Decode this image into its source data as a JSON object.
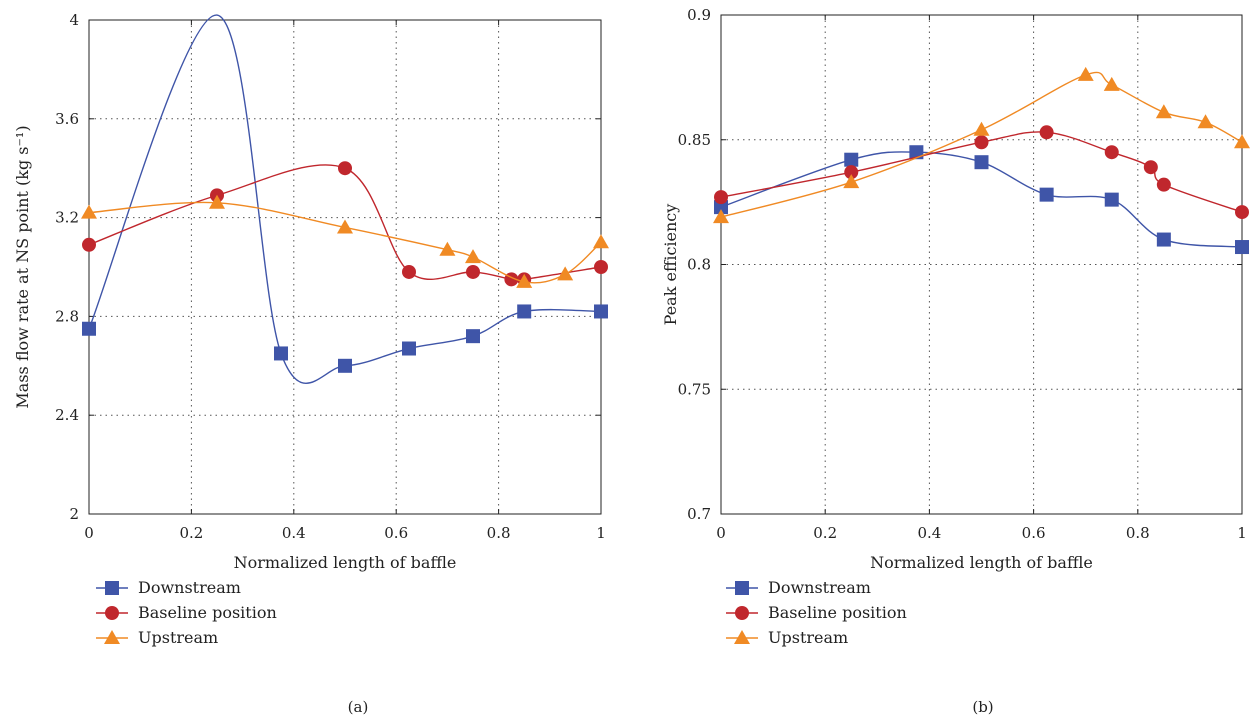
{
  "colors": {
    "downstream": "#3f55a8",
    "baseline": "#c0272d",
    "upstream": "#f08a24"
  },
  "chart_data": [
    {
      "type": "line",
      "caption": "(a)",
      "xlabel": "Normalized length of baffle",
      "ylabel": "Mass flow rate at NS point (kg s⁻¹)",
      "xlim": [
        0,
        1
      ],
      "ylim": [
        2,
        4
      ],
      "xticks": [
        "0",
        "0.2",
        "0.4",
        "0.6",
        "0.8",
        "1"
      ],
      "yticks": [
        "2",
        "2.4",
        "2.8",
        "3.2",
        "3.6",
        "4"
      ],
      "grid": true,
      "legend_position": "below",
      "series": [
        {
          "name": "Downstream",
          "marker": "square",
          "x": [
            0,
            0.375,
            0.5,
            0.625,
            0.75,
            0.85,
            1
          ],
          "y": [
            2.75,
            2.65,
            2.6,
            2.67,
            2.72,
            2.82,
            2.82
          ],
          "curve_peak": {
            "x": 0.25,
            "y": 4.02
          }
        },
        {
          "name": "Baseline position",
          "marker": "circle",
          "x": [
            0,
            0.25,
            0.5,
            0.625,
            0.75,
            0.825,
            0.85,
            1
          ],
          "y": [
            3.09,
            3.29,
            3.4,
            2.98,
            2.98,
            2.95,
            2.95,
            3.0
          ]
        },
        {
          "name": "Upstream",
          "marker": "triangle",
          "x": [
            0,
            0.25,
            0.5,
            0.7,
            0.75,
            0.85,
            0.93,
            1
          ],
          "y": [
            3.22,
            3.26,
            3.16,
            3.07,
            3.04,
            2.94,
            2.97,
            3.1
          ]
        }
      ]
    },
    {
      "type": "line",
      "caption": "(b)",
      "xlabel": "Normalized length of baffle",
      "ylabel": "Peak efficiency",
      "xlim": [
        0,
        1
      ],
      "ylim": [
        0.7,
        0.9
      ],
      "xticks": [
        "0",
        "0.2",
        "0.4",
        "0.6",
        "0.8",
        "1"
      ],
      "yticks": [
        "0.7",
        "0.75",
        "0.8",
        "0.85",
        "0.9"
      ],
      "grid": true,
      "legend_position": "below",
      "series": [
        {
          "name": "Downstream",
          "marker": "square",
          "x": [
            0,
            0.25,
            0.375,
            0.5,
            0.625,
            0.75,
            0.85,
            1
          ],
          "y": [
            0.823,
            0.842,
            0.845,
            0.841,
            0.828,
            0.826,
            0.81,
            0.807
          ]
        },
        {
          "name": "Baseline position",
          "marker": "circle",
          "x": [
            0,
            0.25,
            0.5,
            0.625,
            0.75,
            0.825,
            0.85,
            1
          ],
          "y": [
            0.827,
            0.837,
            0.849,
            0.853,
            0.845,
            0.839,
            0.832,
            0.821
          ]
        },
        {
          "name": "Upstream",
          "marker": "triangle",
          "x": [
            0,
            0.25,
            0.5,
            0.7,
            0.75,
            0.85,
            0.93,
            1
          ],
          "y": [
            0.819,
            0.833,
            0.854,
            0.876,
            0.872,
            0.861,
            0.857,
            0.849
          ]
        }
      ]
    }
  ]
}
